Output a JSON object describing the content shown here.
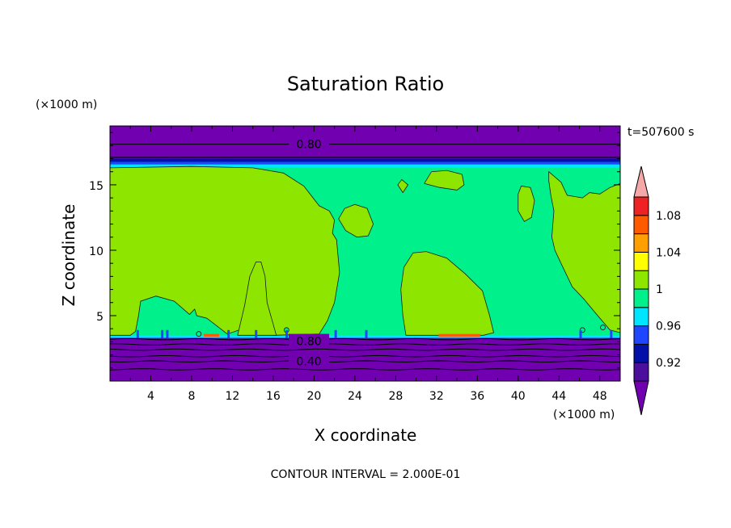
{
  "chart_data": {
    "type": "heatmap",
    "title": "Saturation Ratio",
    "xlabel": "X coordinate",
    "ylabel": "Z coordinate",
    "x_unit": "(×1000 m)",
    "y_unit": "(×1000 m)",
    "time_label": "t=507600 s",
    "footer": "CONTOUR INTERVAL = 2.000E-01",
    "xlim": [
      0,
      50
    ],
    "ylim": [
      0,
      19.5
    ],
    "x_ticks": [
      4,
      8,
      12,
      16,
      20,
      24,
      28,
      32,
      36,
      40,
      44,
      48
    ],
    "y_ticks": [
      5,
      10,
      15
    ],
    "contour_labels": [
      "0.80",
      "0.80",
      "0.40"
    ],
    "colorbar": {
      "tick_labels": [
        "1.08",
        "1.04",
        "1",
        "0.96",
        "0.92"
      ],
      "levels": [
        0.92,
        0.94,
        0.96,
        0.98,
        1.0,
        1.02,
        1.04,
        1.06,
        1.08,
        1.1
      ],
      "colors": [
        "#4b0e9d",
        "#0010a8",
        "#1f46ff",
        "#00e5ff",
        "#00f08c",
        "#8ee600",
        "#ffff00",
        "#ffa000",
        "#ff5a00",
        "#ee2222"
      ],
      "under_color": "#7000b0",
      "over_color": "#f4a8a8"
    },
    "layers": {
      "lower_purple_top_km": 3.3,
      "upper_purple_bottom_km": 17.0,
      "green_top_km": 16.3,
      "surface_band_top_km": 3.5
    }
  }
}
